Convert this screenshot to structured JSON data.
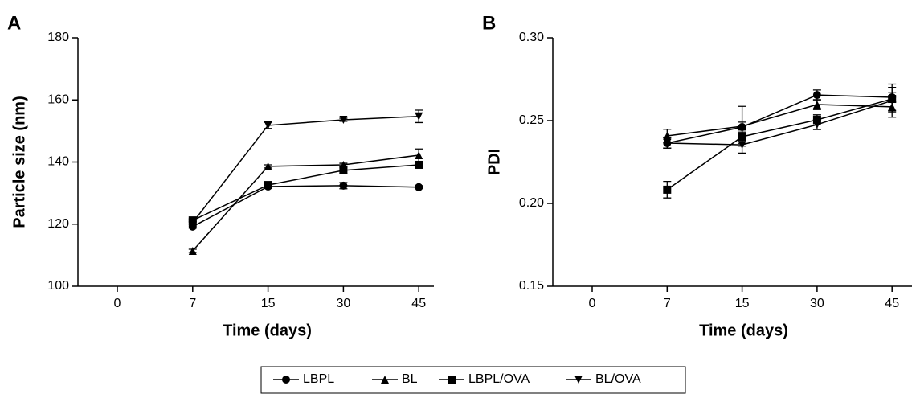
{
  "chart_data": [
    {
      "type": "line",
      "panel_label": "A",
      "xlabel": "Time (days)",
      "ylabel": "Particle size (nm)",
      "categories": [
        "0",
        "7",
        "15",
        "30",
        "45"
      ],
      "ylim": [
        100,
        180
      ],
      "yticks": [
        100,
        120,
        140,
        160,
        180
      ],
      "series": [
        {
          "name": "LBPL",
          "color": "#000000",
          "marker": "circle",
          "values": [
            null,
            119.2,
            132.1,
            132.4,
            131.9
          ],
          "errors": [
            null,
            0.5,
            0.5,
            1,
            0.5
          ]
        },
        {
          "name": "BL",
          "color": "#000000",
          "marker": "triangle",
          "values": [
            null,
            111.4,
            138.6,
            139.1,
            142.2
          ],
          "errors": [
            null,
            0.5,
            0.5,
            0.5,
            2
          ]
        },
        {
          "name": "LBPL/OVA",
          "color": "#000000",
          "marker": "square",
          "values": [
            null,
            121.2,
            132.6,
            137.3,
            139.1
          ],
          "errors": [
            null,
            0.5,
            0.5,
            1,
            1
          ]
        },
        {
          "name": "BL/OVA",
          "color": "#000000",
          "marker": "triangle-down",
          "values": [
            null,
            120.5,
            151.8,
            153.6,
            154.7
          ],
          "errors": [
            null,
            0.5,
            1,
            0.5,
            2
          ]
        }
      ]
    },
    {
      "type": "line",
      "panel_label": "B",
      "xlabel": "Time (days)",
      "ylabel": "PDI",
      "categories": [
        "0",
        "7",
        "15",
        "30",
        "45"
      ],
      "ylim": [
        0.15,
        0.3
      ],
      "yticks": [
        0.15,
        {
          "value": 0.2,
          "label": "0.20"
        },
        0.25,
        {
          "value": 0.3,
          "label": "0.30"
        }
      ],
      "series": [
        {
          "name": "LBPL",
          "color": "#000000",
          "marker": "circle",
          "values": [
            null,
            0.2364,
            0.2461,
            0.2655,
            0.2641
          ],
          "errors": [
            null,
            0.003,
            0.003,
            0.003,
            0.003
          ]
        },
        {
          "name": "BL",
          "color": "#000000",
          "marker": "triangle",
          "values": [
            null,
            0.2408,
            0.2466,
            0.2597,
            0.2583
          ],
          "errors": [
            null,
            0.004,
            0.012,
            0.003,
            0.003
          ]
        },
        {
          "name": "LBPL/OVA",
          "color": "#000000",
          "marker": "square",
          "values": [
            null,
            0.2083,
            0.2403,
            0.2505,
            0.2631
          ],
          "errors": [
            null,
            0.005,
            0.004,
            0.003,
            0.007
          ]
        },
        {
          "name": "BL/OVA",
          "color": "#000000",
          "marker": "triangle-down",
          "values": [
            null,
            0.2364,
            0.2354,
            0.2476,
            0.2621
          ],
          "errors": [
            null,
            0.003,
            0.005,
            0.003,
            0.01
          ]
        }
      ]
    }
  ]
}
